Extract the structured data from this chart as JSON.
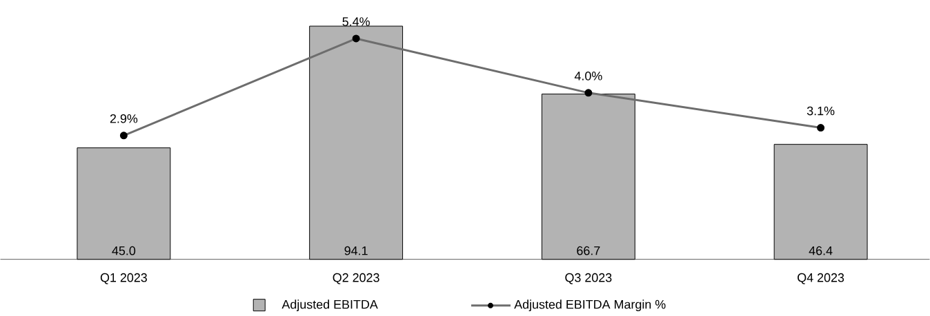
{
  "chart_data": {
    "type": "bar",
    "categories": [
      "Q1 2023",
      "Q2 2023",
      "Q3 2023",
      "Q4 2023"
    ],
    "series": [
      {
        "name": "Adjusted EBITDA",
        "color": "#b3b3b3",
        "values": [
          45.0,
          94.1,
          66.7,
          46.4
        ],
        "value_labels": [
          "45.0",
          "94.1",
          "66.7",
          "46.4"
        ]
      },
      {
        "name": "Adjusted EBITDA Margin %",
        "type": "line",
        "axis": "y2",
        "color": "#6d6d6d",
        "marker": "circle",
        "line_style": "solid",
        "values": [
          2.9,
          5.4,
          4.0,
          3.1
        ],
        "value_labels": [
          "2.9%",
          "5.4%",
          "4.0%",
          "3.1%"
        ]
      }
    ],
    "tick_labels": "x",
    "legend": "bottom"
  }
}
